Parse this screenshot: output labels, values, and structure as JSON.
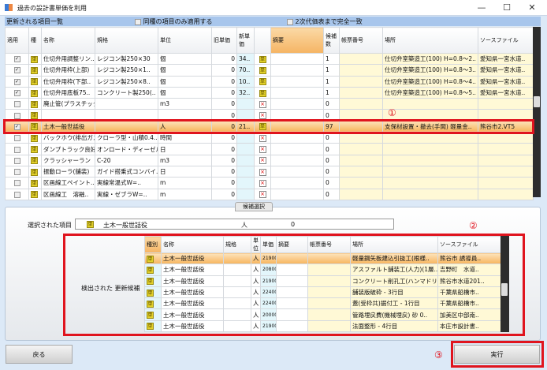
{
  "window": {
    "title": "過去の設計書単価を利用",
    "minimize": "—",
    "maximize": "☐",
    "close": "✕"
  },
  "top": {
    "section_title": "更新される項目一覧",
    "opt1": "同種の項目のみ適用する",
    "opt2": "2次代価表まで完全一致"
  },
  "main_table": {
    "headers": [
      "適用",
      "種",
      "名称",
      "規格",
      "単位",
      "旧単価",
      "新単価",
      "",
      "摘要",
      "候補数",
      "帳票番号",
      "場所",
      "ソースファイル"
    ],
    "rows": [
      {
        "checked": true,
        "name": "仕切弁用調整リン..",
        "spec": "レジコン製250×30",
        "unit": "個",
        "old": "0",
        "new": "34..",
        "icon": "kind",
        "count": "1",
        "place": "仕切弁室築造工(100) H=0.8～2..",
        "src": "愛知県一宮水道.."
      },
      {
        "checked": true,
        "name": "仕切弁用枠(上部)",
        "spec": "レジコン製250×1..",
        "unit": "個",
        "old": "0",
        "new": "70..",
        "icon": "kind",
        "count": "1",
        "place": "仕切弁室築造工(100) H=0.8～3..",
        "src": "愛知県一宮水道.."
      },
      {
        "checked": true,
        "name": "仕切弁用枠(下部..",
        "spec": "レジコン製250×8..",
        "unit": "個",
        "old": "0",
        "new": "10..",
        "icon": "kind",
        "count": "1",
        "place": "仕切弁室築造工(100) H=0.8～4..",
        "src": "愛知県一宮水道.."
      },
      {
        "checked": true,
        "name": "仕切弁用底板75..",
        "spec": "コンクリート製250(..",
        "unit": "個",
        "old": "0",
        "new": "32..",
        "icon": "kind",
        "count": "1",
        "place": "仕切弁室築造工(100) H=0.8～5..",
        "src": "愛知県一宮水道.."
      },
      {
        "checked": false,
        "name": "廃止管(プラスチック..",
        "spec": "",
        "unit": "m3",
        "old": "0",
        "new": "",
        "icon": "x",
        "count": "0",
        "place": "",
        "src": ""
      },
      {
        "checked": false,
        "name": "",
        "spec": "",
        "unit": "",
        "old": "0",
        "new": "",
        "icon": "x",
        "count": "0",
        "place": "",
        "src": ""
      },
      {
        "checked": true,
        "selected": true,
        "name": "土木一般世話役",
        "spec": "",
        "unit": "人",
        "old": "0",
        "new": "21..",
        "icon": "kind",
        "count": "97",
        "place": "支保材設置・撤去(手間) 軽量金..",
        "src": "熊谷市2.VT5"
      },
      {
        "checked": false,
        "name": "バックホウ(排出ガス対..",
        "spec": "クローラ型・山積0.4..",
        "unit": "時間",
        "old": "0",
        "new": "",
        "icon": "x",
        "count": "0",
        "place": "",
        "src": ""
      },
      {
        "checked": false,
        "name": "ダンプトラック良好",
        "spec": "オンロード・ディーゼル..",
        "unit": "日",
        "old": "0",
        "new": "",
        "icon": "x",
        "count": "0",
        "place": "",
        "src": ""
      },
      {
        "checked": false,
        "name": "クラッシャーラン",
        "spec": "C-20",
        "unit": "m3",
        "old": "0",
        "new": "",
        "icon": "x",
        "count": "0",
        "place": "",
        "src": ""
      },
      {
        "checked": false,
        "name": "振動ローラ(舗装)",
        "spec": "ガイド搭乗式コンバイ..",
        "unit": "日",
        "old": "0",
        "new": "",
        "icon": "x",
        "count": "0",
        "place": "",
        "src": ""
      },
      {
        "checked": false,
        "name": "区画線工ペイント..",
        "spec": "実線常温式W=..",
        "unit": "m",
        "old": "0",
        "new": "",
        "icon": "x",
        "count": "0",
        "place": "",
        "src": ""
      },
      {
        "checked": false,
        "name": "区画線工　溶融..",
        "spec": "実線・ゼブラW=..",
        "unit": "m",
        "old": "0",
        "new": "",
        "icon": "x",
        "count": "0",
        "place": "",
        "src": ""
      }
    ]
  },
  "annotations": {
    "one": "①",
    "two": "②",
    "three": "③"
  },
  "bottom": {
    "tab": "候補選択",
    "selected_label": "選択された項目",
    "selected_name": "土木一般世話役",
    "selected_unit": "人",
    "selected_price": "0",
    "candidates_label": "検出された 更新候補"
  },
  "cand_table": {
    "headers": [
      "種別",
      "名称",
      "規格",
      "単位",
      "単価",
      "摘要",
      "帳票番号",
      "場所",
      "ソースファイル"
    ],
    "rows": [
      {
        "name": "土木一般世話役",
        "unit": "人",
        "price": "21900",
        "place": "軽量鋼矢板建込引抜工(根様..",
        "src": "熊谷市 誘導員.."
      },
      {
        "name": "土木一般世話役",
        "unit": "人",
        "price": "20800",
        "place": "アスファルト舗装工(人力)(1層..",
        "src": "吉野町　水道.."
      },
      {
        "name": "土木一般世話役",
        "unit": "人",
        "price": "21900",
        "place": "コンクリート削孔工(ハンマドリル)φ..",
        "src": "熊谷市水道201.."
      },
      {
        "name": "土木一般世話役",
        "unit": "人",
        "price": "22400",
        "place": "舗装版破砕 - 3行目",
        "src": "千葉県船橋市.."
      },
      {
        "name": "土木一般世話役",
        "unit": "人",
        "price": "22400",
        "place": "蓋(受枠共)据付工 - 1行目",
        "src": "千葉県船橋市.."
      },
      {
        "name": "土木一般世話役",
        "unit": "人",
        "price": "20000",
        "place": "管路埋戻費(機械埋戻) 砂 0..",
        "src": "加美区中部南.."
      },
      {
        "name": "土木一般世話役",
        "unit": "人",
        "price": "21900",
        "place": "法面整形 - 4行目",
        "src": "本庄市設計書.."
      }
    ]
  },
  "buttons": {
    "back": "戻る",
    "execute": "実行"
  },
  "colors": {
    "accent_red": "#e0141e",
    "header_blue": "#a8c6ec",
    "selected_row": "#f7b55e"
  }
}
